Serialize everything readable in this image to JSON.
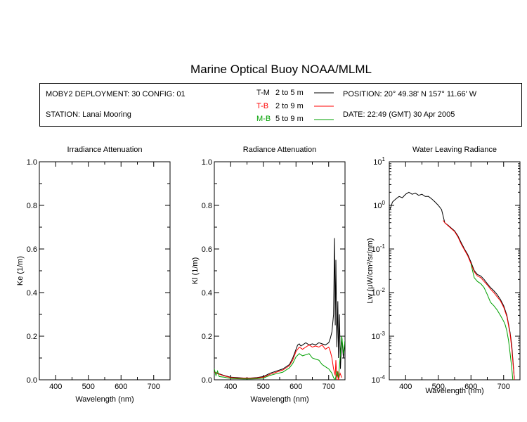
{
  "title": "Marine Optical Buoy NOAA/MLML",
  "info": {
    "deployment": "MOBY2 DEPLOYMENT: 30 CONFIG: 01",
    "station": "STATION: Lanai Mooring",
    "position": "POSITION: 20° 49.38' N   157° 11.66' W",
    "date": "DATE: 22:49 (GMT) 30 Apr 2005",
    "legend": [
      {
        "abbr": "T-M",
        "range": "2 to 5  m",
        "color": "#000000"
      },
      {
        "abbr": "T-B",
        "range": "2 to 9  m",
        "color": "#ff0000"
      },
      {
        "abbr": "M-B",
        "range": "5 to 9  m",
        "color": "#00a000"
      }
    ]
  },
  "chart_data": [
    {
      "type": "line",
      "title": "Irradiance Attenuation",
      "xlabel": "Wavelength (nm)",
      "ylabel": "Ke  (1/m)",
      "xlim": [
        350,
        750
      ],
      "ylim": [
        0,
        1
      ],
      "xticks": [
        400,
        500,
        600,
        700
      ],
      "yticks": [
        0.0,
        0.2,
        0.4,
        0.6,
        0.8,
        1.0
      ],
      "ytick_labels": [
        "0.0",
        "0.2",
        "0.4",
        "0.6",
        "0.8",
        "1.0"
      ],
      "series": []
    },
    {
      "type": "line",
      "title": "Radiance Attenuation",
      "xlabel": "Wavelength (nm)",
      "ylabel": "Kl  (1/m)",
      "xlim": [
        350,
        750
      ],
      "ylim": [
        0,
        1
      ],
      "xticks": [
        400,
        500,
        600,
        700
      ],
      "yticks": [
        0.0,
        0.2,
        0.4,
        0.6,
        0.8,
        1.0
      ],
      "ytick_labels": [
        "0.0",
        "0.2",
        "0.4",
        "0.6",
        "0.8",
        "1.0"
      ],
      "series": [
        {
          "color": "#000000",
          "x": [
            350,
            360,
            380,
            400,
            420,
            440,
            460,
            480,
            500,
            520,
            540,
            560,
            570,
            580,
            590,
            600,
            605,
            610,
            615,
            620,
            630,
            640,
            650,
            660,
            670,
            680,
            690,
            700,
            705,
            710,
            715,
            718,
            720,
            722,
            725,
            728,
            730,
            733,
            736,
            740,
            745,
            750
          ],
          "y": [
            0.035,
            0.03,
            0.02,
            0.012,
            0.01,
            0.008,
            0.008,
            0.01,
            0.015,
            0.03,
            0.04,
            0.05,
            0.06,
            0.07,
            0.1,
            0.14,
            0.16,
            0.165,
            0.155,
            0.16,
            0.17,
            0.16,
            0.165,
            0.16,
            0.17,
            0.165,
            0.16,
            0.17,
            0.19,
            0.22,
            0.3,
            0.65,
            0.25,
            0.55,
            0.15,
            0.36,
            0.1,
            0.3,
            0.05,
            0.2,
            0.1,
            0.18
          ]
        },
        {
          "color": "#ff0000",
          "x": [
            350,
            360,
            380,
            400,
            420,
            440,
            460,
            480,
            500,
            520,
            540,
            560,
            570,
            580,
            590,
            600,
            610,
            620,
            630,
            640,
            650,
            660,
            670,
            680,
            690,
            700,
            705,
            710,
            715,
            720,
            722,
            725,
            728,
            730,
            735,
            740
          ],
          "y": [
            0.035,
            0.028,
            0.018,
            0.01,
            0.008,
            0.007,
            0.007,
            0.008,
            0.012,
            0.025,
            0.035,
            0.045,
            0.055,
            0.065,
            0.09,
            0.13,
            0.15,
            0.14,
            0.15,
            0.16,
            0.15,
            0.155,
            0.15,
            0.16,
            0.14,
            0.15,
            0.13,
            0.1,
            0.05,
            0.02,
            0.09,
            0.0,
            0.04,
            0.0,
            0.03,
            0.01
          ]
        },
        {
          "color": "#00a000",
          "x": [
            350,
            355,
            360,
            365,
            380,
            400,
            420,
            440,
            460,
            480,
            500,
            520,
            540,
            560,
            570,
            580,
            590,
            600,
            610,
            620,
            630,
            640,
            650,
            660,
            670,
            680,
            690,
            700,
            705,
            710,
            715,
            720,
            725,
            730,
            735,
            740,
            745,
            750
          ],
          "y": [
            0.05,
            0.02,
            0.04,
            0.015,
            0.012,
            0.006,
            0.005,
            0.004,
            0.004,
            0.005,
            0.008,
            0.02,
            0.028,
            0.035,
            0.045,
            0.055,
            0.075,
            0.105,
            0.12,
            0.11,
            0.115,
            0.12,
            0.1,
            0.095,
            0.09,
            0.07,
            0.06,
            0.05,
            0.04,
            0.03,
            0.01,
            0.0,
            0.04,
            0.01,
            0.1,
            0.2,
            0.12,
            0.18
          ]
        }
      ]
    },
    {
      "type": "line",
      "title": "Water Leaving Radiance",
      "xlabel": "Wavelength (nm)",
      "ylabel": "Lw  (μW/cm²/sr/nm)",
      "xlim": [
        350,
        750
      ],
      "ylim": [
        0.0001,
        10
      ],
      "yscale": "log",
      "xticks": [
        400,
        500,
        600,
        700
      ],
      "yticks": [
        0.0001,
        0.001,
        0.01,
        0.1,
        1,
        10
      ],
      "ytick_labels": [
        [
          "10",
          "-4"
        ],
        [
          "10",
          "-3"
        ],
        [
          "10",
          "-2"
        ],
        [
          "10",
          "-1"
        ],
        [
          "10",
          "0"
        ],
        [
          "10",
          "1"
        ]
      ],
      "series": [
        {
          "color": "#000000",
          "x": [
            352,
            360,
            370,
            380,
            390,
            400,
            410,
            420,
            430,
            440,
            450,
            460,
            470,
            480,
            490,
            500,
            510,
            520,
            530,
            540,
            550,
            560,
            570,
            580,
            590,
            600,
            610,
            620,
            630,
            640,
            650,
            660,
            670,
            680,
            690,
            700,
            710,
            720,
            725,
            730,
            733
          ],
          "y": [
            0.8,
            1.2,
            1.4,
            1.6,
            1.5,
            1.8,
            2.0,
            1.8,
            1.9,
            1.7,
            1.8,
            1.6,
            1.6,
            1.4,
            1.2,
            1.0,
            0.8,
            0.4,
            0.35,
            0.3,
            0.26,
            0.2,
            0.14,
            0.1,
            0.075,
            0.05,
            0.032,
            0.026,
            0.024,
            0.02,
            0.016,
            0.013,
            0.011,
            0.009,
            0.007,
            0.005,
            0.003,
            0.0012,
            0.0006,
            0.0002,
            0.0001
          ]
        },
        {
          "color": "#ff0000",
          "x": [
            515,
            520,
            530,
            540,
            550,
            560,
            570,
            580,
            590,
            600,
            610,
            620,
            630,
            640,
            650,
            660,
            670,
            680,
            690,
            700,
            710,
            720,
            725,
            730,
            733
          ],
          "y": [
            0.45,
            0.4,
            0.34,
            0.29,
            0.25,
            0.19,
            0.13,
            0.095,
            0.07,
            0.046,
            0.03,
            0.024,
            0.022,
            0.018,
            0.015,
            0.012,
            0.01,
            0.008,
            0.0065,
            0.0046,
            0.0028,
            0.0011,
            0.0005,
            0.00018,
            0.0001
          ]
        },
        {
          "color": "#00a000",
          "x": [
            600,
            610,
            620,
            630,
            640,
            650,
            660,
            670,
            680,
            690,
            700,
            705,
            710,
            715,
            720,
            725,
            728
          ],
          "y": [
            0.045,
            0.022,
            0.018,
            0.016,
            0.013,
            0.009,
            0.006,
            0.005,
            0.004,
            0.003,
            0.0022,
            0.0018,
            0.0013,
            0.0008,
            0.0004,
            0.00018,
            0.0001
          ]
        }
      ]
    }
  ]
}
